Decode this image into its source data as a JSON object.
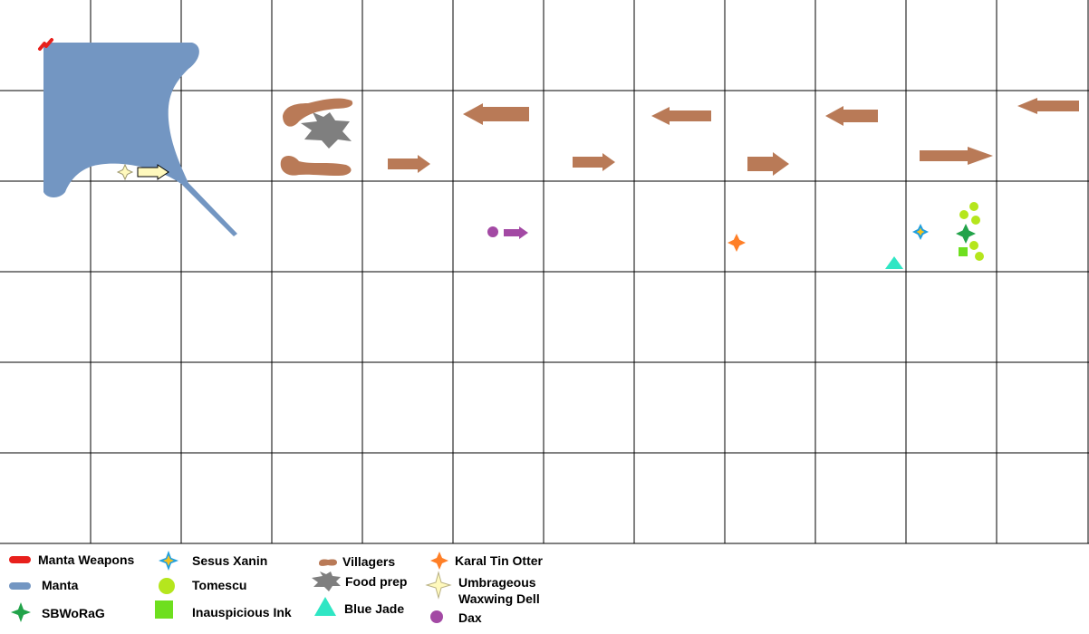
{
  "scene": {
    "type": "tactical battle map",
    "grid": {
      "columns": 12,
      "rows": 6,
      "line_color": "#000000",
      "background": "#ffffff"
    },
    "units": [
      {
        "legend_key": "manta",
        "count": 1
      },
      {
        "legend_key": "manta_weapons",
        "count": 1
      },
      {
        "legend_key": "villagers",
        "count": 8
      },
      {
        "legend_key": "food_prep",
        "count": 1
      },
      {
        "legend_key": "umbrageous",
        "count": 1
      },
      {
        "legend_key": "dax",
        "count": 1
      },
      {
        "legend_key": "karal",
        "count": 1
      },
      {
        "legend_key": "blue_jade",
        "count": 1
      },
      {
        "legend_key": "sesus",
        "count": 1
      },
      {
        "legend_key": "sbworag",
        "count": 1
      },
      {
        "legend_key": "tomescu",
        "count": 5
      },
      {
        "legend_key": "inauspicious",
        "count": 1
      }
    ]
  },
  "legend": {
    "manta_weapons": {
      "label": "Manta Weapons",
      "color": "#e8201c",
      "icon": "red-capsule-icon"
    },
    "manta": {
      "label": "Manta",
      "color": "#7396c2",
      "icon": "blue-capsule-icon"
    },
    "sbworag": {
      "label": "SBWoRaG",
      "color": "#22a34a",
      "icon": "green-four-point-star-icon"
    },
    "sesus": {
      "label": "Sesus Xanin",
      "color": "#1f9fe0",
      "accent": "#f7c31c",
      "icon": "blue-gold-star-icon"
    },
    "tomescu": {
      "label": "Tomescu",
      "color": "#b5e61d",
      "icon": "lime-circle-icon"
    },
    "inauspicious": {
      "label": "Inauspicious Ink",
      "color": "#6edf1f",
      "icon": "green-square-icon"
    },
    "villagers": {
      "label": "Villagers",
      "color": "#b97a57",
      "icon": "brown-blob-icon"
    },
    "food_prep": {
      "label": "Food prep",
      "color": "#7f7f7f",
      "icon": "gray-six-point-star-icon"
    },
    "blue_jade": {
      "label": "Blue Jade",
      "color": "#2fe6c4",
      "icon": "teal-triangle-icon"
    },
    "karal": {
      "label": "Karal Tin Otter",
      "color": "#ff7f27",
      "icon": "orange-four-point-star-icon"
    },
    "umbrageous": {
      "label": "Umbrageous\nWaxwing Dell",
      "line1": "Umbrageous",
      "line2": "Waxwing Dell",
      "color": "#fff9bd",
      "icon": "pale-yellow-star-icon"
    },
    "dax": {
      "label": "Dax",
      "color": "#a349a4",
      "icon": "purple-circle-icon"
    }
  }
}
